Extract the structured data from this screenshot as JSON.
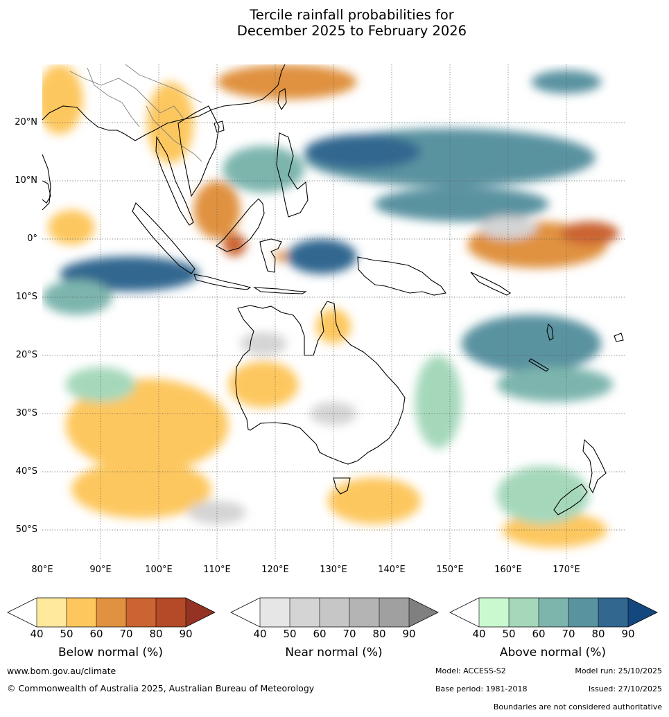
{
  "title": {
    "line1": "Tercile rainfall probabilities for",
    "line2": "December 2025 to February 2026"
  },
  "map": {
    "lon_range": [
      80,
      180
    ],
    "lat_range": [
      -55,
      30
    ],
    "lat_labels": [
      "20°N",
      "10°N",
      "0°",
      "10°S",
      "20°S",
      "30°S",
      "40°S",
      "50°S"
    ],
    "lat_values": [
      20,
      10,
      0,
      -10,
      -20,
      -30,
      -40,
      -50
    ],
    "lon_labels": [
      "80°E",
      "90°E",
      "100°E",
      "110°E",
      "120°E",
      "130°E",
      "140°E",
      "150°E",
      "160°E",
      "170°E"
    ],
    "lon_values": [
      80,
      90,
      100,
      110,
      120,
      130,
      140,
      150,
      160,
      170
    ],
    "gridlines": "dotted",
    "regions": [
      {
        "cat": "below",
        "level": 2,
        "lon": 122,
        "lat": 27,
        "rx": 12,
        "ry": 3
      },
      {
        "cat": "below",
        "level": 1,
        "lon": 83,
        "lat": 24,
        "rx": 4,
        "ry": 6
      },
      {
        "cat": "below",
        "level": 1,
        "lon": 102,
        "lat": 20,
        "rx": 4,
        "ry": 7
      },
      {
        "cat": "below",
        "level": 1,
        "lon": 85,
        "lat": 2,
        "rx": 4,
        "ry": 3
      },
      {
        "cat": "below",
        "level": 2,
        "lon": 110,
        "lat": 5,
        "rx": 4,
        "ry": 5
      },
      {
        "cat": "below",
        "level": 3,
        "lon": 113,
        "lat": -1,
        "rx": 2,
        "ry": 2
      },
      {
        "cat": "below",
        "level": 2,
        "lon": 121,
        "lat": -3,
        "rx": 1,
        "ry": 1
      },
      {
        "cat": "below",
        "level": 2,
        "lon": 165,
        "lat": -1,
        "rx": 12,
        "ry": 4
      },
      {
        "cat": "below",
        "level": 3,
        "lon": 174,
        "lat": 1,
        "rx": 5,
        "ry": 2
      },
      {
        "cat": "below",
        "level": 1,
        "lon": 130,
        "lat": -15,
        "rx": 3,
        "ry": 3
      },
      {
        "cat": "below",
        "level": 1,
        "lon": 118,
        "lat": -25,
        "rx": 6,
        "ry": 4
      },
      {
        "cat": "below",
        "level": 1,
        "lon": 98,
        "lat": -32,
        "rx": 14,
        "ry": 8
      },
      {
        "cat": "below",
        "level": 1,
        "lon": 97,
        "lat": -43,
        "rx": 12,
        "ry": 5
      },
      {
        "cat": "below",
        "level": 1,
        "lon": 137,
        "lat": -45,
        "rx": 8,
        "ry": 4
      },
      {
        "cat": "below",
        "level": 1,
        "lon": 168,
        "lat": -50,
        "rx": 9,
        "ry": 3
      },
      {
        "cat": "above",
        "level": 3,
        "lon": 150,
        "lat": 14,
        "rx": 25,
        "ry": 5
      },
      {
        "cat": "above",
        "level": 4,
        "lon": 135,
        "lat": 15,
        "rx": 10,
        "ry": 3
      },
      {
        "cat": "above",
        "level": 3,
        "lon": 152,
        "lat": 6,
        "rx": 15,
        "ry": 3
      },
      {
        "cat": "above",
        "level": 2,
        "lon": 118,
        "lat": 12,
        "rx": 7,
        "ry": 4
      },
      {
        "cat": "above",
        "level": 4,
        "lon": 95,
        "lat": -6,
        "rx": 12,
        "ry": 3
      },
      {
        "cat": "above",
        "level": 2,
        "lon": 86,
        "lat": -10,
        "rx": 6,
        "ry": 3
      },
      {
        "cat": "above",
        "level": 4,
        "lon": 128,
        "lat": -3,
        "rx": 6,
        "ry": 3
      },
      {
        "cat": "above",
        "level": 3,
        "lon": 164,
        "lat": -18,
        "rx": 12,
        "ry": 5
      },
      {
        "cat": "above",
        "level": 2,
        "lon": 168,
        "lat": -25,
        "rx": 10,
        "ry": 3
      },
      {
        "cat": "above",
        "level": 3,
        "lon": 170,
        "lat": 27,
        "rx": 6,
        "ry": 2
      },
      {
        "cat": "above",
        "level": 1,
        "lon": 148,
        "lat": -28,
        "rx": 4,
        "ry": 8
      },
      {
        "cat": "above",
        "level": 1,
        "lon": 166,
        "lat": -44,
        "rx": 8,
        "ry": 5
      },
      {
        "cat": "above",
        "level": 1,
        "lon": 90,
        "lat": -25,
        "rx": 6,
        "ry": 3
      },
      {
        "cat": "near",
        "level": 1,
        "lon": 130,
        "lat": -30,
        "rx": 4,
        "ry": 2
      },
      {
        "cat": "near",
        "level": 1,
        "lon": 110,
        "lat": -47,
        "rx": 5,
        "ry": 2
      },
      {
        "cat": "near",
        "level": 1,
        "lon": 160,
        "lat": 2,
        "rx": 5,
        "ry": 2
      },
      {
        "cat": "near",
        "level": 1,
        "lon": 118,
        "lat": -18,
        "rx": 4,
        "ry": 2
      }
    ]
  },
  "colorbars": [
    {
      "id": "below",
      "title": "Below normal (%)",
      "ticks": [
        "40",
        "50",
        "60",
        "70",
        "80",
        "90"
      ],
      "colors": [
        "#fee99c",
        "#fdc75e",
        "#e09240",
        "#cb6332",
        "#b44a27"
      ],
      "extend_color": "#943224"
    },
    {
      "id": "near",
      "title": "Near normal (%)",
      "ticks": [
        "40",
        "50",
        "60",
        "70",
        "80",
        "90"
      ],
      "colors": [
        "#e6e6e6",
        "#d4d4d4",
        "#c6c6c6",
        "#b4b4b4",
        "#a0a0a0"
      ],
      "extend_color": "#808080"
    },
    {
      "id": "above",
      "title": "Above normal (%)",
      "ticks": [
        "40",
        "50",
        "60",
        "70",
        "80",
        "90"
      ],
      "colors": [
        "#caf9cf",
        "#a5d8bb",
        "#7db5ad",
        "#5a93a0",
        "#326790"
      ],
      "extend_color": "#14477e"
    }
  ],
  "footer": {
    "website": "www.bom.gov.au/climate",
    "copyright": "© Commonwealth of Australia 2025, Australian Bureau of Meteorology",
    "model": "Model: ACCESS-S2",
    "model_run": "Model run: 25/10/2025",
    "base_period": "Base period: 1981-2018",
    "issued": "Issued: 27/10/2025",
    "disclaimer": "Boundaries are not considered authoritative"
  }
}
